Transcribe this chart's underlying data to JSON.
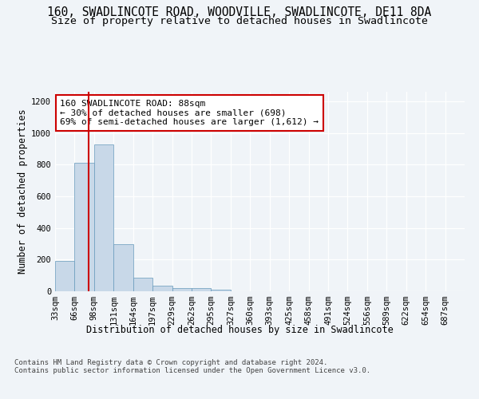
{
  "title": "160, SWADLINCOTE ROAD, WOODVILLE, SWADLINCOTE, DE11 8DA",
  "subtitle": "Size of property relative to detached houses in Swadlincote",
  "xlabel": "Distribution of detached houses by size in Swadlincote",
  "ylabel": "Number of detached properties",
  "bin_labels": [
    "33sqm",
    "66sqm",
    "98sqm",
    "131sqm",
    "164sqm",
    "197sqm",
    "229sqm",
    "262sqm",
    "295sqm",
    "327sqm",
    "360sqm",
    "393sqm",
    "425sqm",
    "458sqm",
    "491sqm",
    "524sqm",
    "556sqm",
    "589sqm",
    "622sqm",
    "654sqm",
    "687sqm"
  ],
  "bar_values": [
    192,
    810,
    928,
    295,
    88,
    36,
    20,
    18,
    12,
    0,
    0,
    0,
    0,
    0,
    0,
    0,
    0,
    0,
    0,
    0,
    0
  ],
  "bar_color": "#c8d8e8",
  "bar_edge_color": "#6699bb",
  "property_line_x": 1.72,
  "annotation_text": "160 SWADLINCOTE ROAD: 88sqm\n← 30% of detached houses are smaller (698)\n69% of semi-detached houses are larger (1,612) →",
  "annotation_box_color": "#ffffff",
  "annotation_box_edge_color": "#cc0000",
  "ylim": [
    0,
    1260
  ],
  "yticks": [
    0,
    200,
    400,
    600,
    800,
    1000,
    1200
  ],
  "footer_text": "Contains HM Land Registry data © Crown copyright and database right 2024.\nContains public sector information licensed under the Open Government Licence v3.0.",
  "bg_color": "#f0f4f8",
  "plot_bg_color": "#f0f4f8",
  "grid_color": "#ffffff",
  "title_fontsize": 10.5,
  "subtitle_fontsize": 9.5,
  "axis_label_fontsize": 8.5,
  "tick_fontsize": 7.5,
  "annotation_fontsize": 8,
  "footer_fontsize": 6.5
}
